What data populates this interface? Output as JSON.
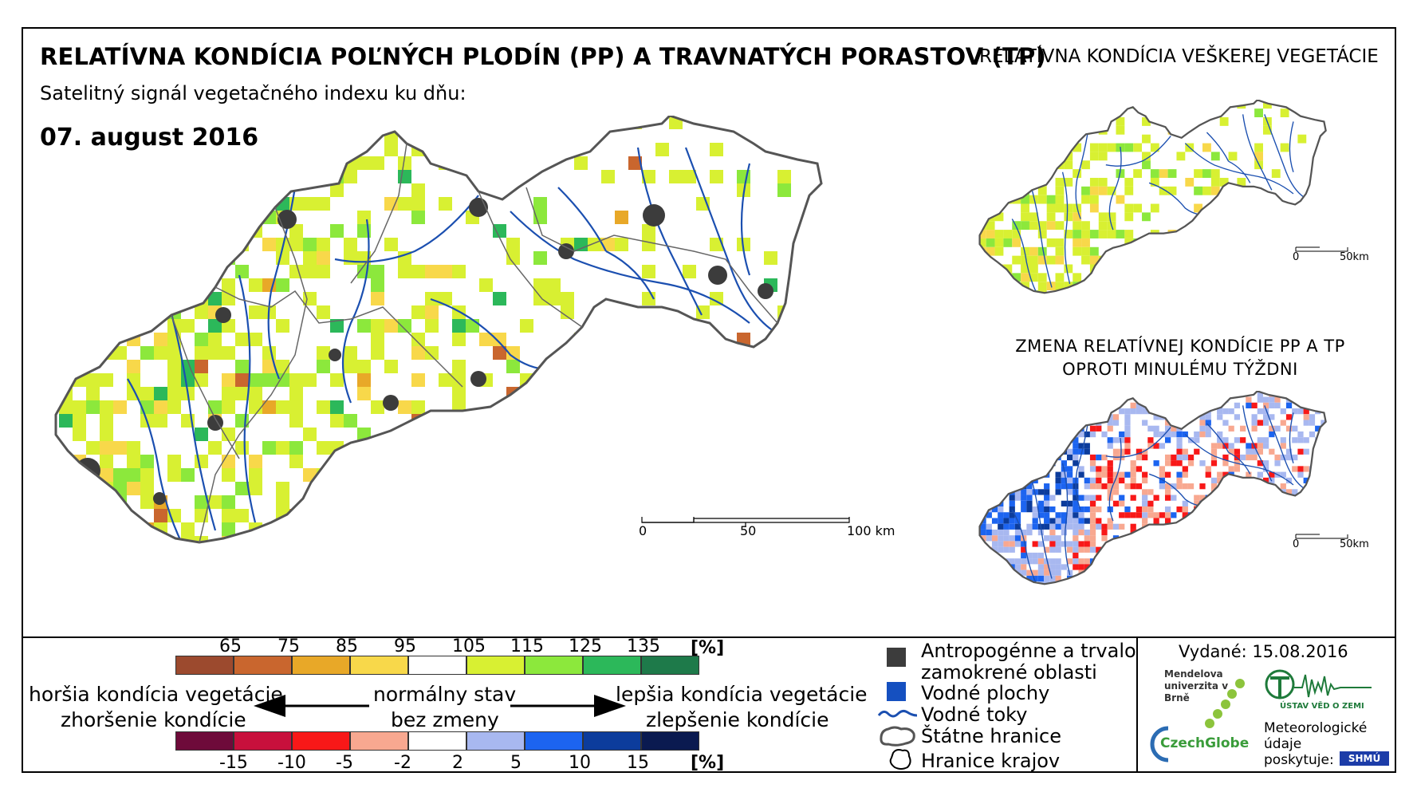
{
  "header": {
    "title": "RELATÍVNA KONDÍCIA POĽNÝCH PLODÍN (PP) A TRAVNATÝCH PORASTOV (TP)",
    "side_title": "RELATÍVNA KONDÍCIA VEŠKEREJ VEGETÁCIE",
    "subtitle": "Satelitný signál vegetačného indexu ku dňu:",
    "date": "07. august 2016"
  },
  "change_map": {
    "title_line1": "ZMENA RELATÍVNEJ KONDÍCIE PP A TP",
    "title_line2": "OPROTI MINULÉMU TÝŽDNI"
  },
  "main_scale": {
    "label0": "0",
    "label1": "50",
    "label2": "100 km"
  },
  "small_scale_1": {
    "label0": "0",
    "label1": "50km"
  },
  "small_scale_2": {
    "label0": "0",
    "label1": "50km"
  },
  "condition_scale": {
    "ticks": [
      "65",
      "75",
      "85",
      "95",
      "105",
      "115",
      "125",
      "135"
    ],
    "unit": "[%]",
    "colors": [
      "#9c4a2e",
      "#c9662e",
      "#e8a828",
      "#f8d84a",
      "#ffffff",
      "#d8f032",
      "#8ce83c",
      "#2cb85a",
      "#1e7a4a"
    ]
  },
  "change_scale": {
    "ticks": [
      "-15",
      "-10",
      "-5",
      "-2",
      "2",
      "5",
      "10",
      "15"
    ],
    "unit": "[%]",
    "colors": [
      "#6e0a3a",
      "#c8103c",
      "#f81818",
      "#f8a890",
      "#ffffff",
      "#a8b8f0",
      "#1c64f0",
      "#0c3c9c",
      "#0a1a50"
    ]
  },
  "legend_text": {
    "worse_condition": "horšia kondícia vegetácie",
    "worse_change": "zhoršenie kondície",
    "normal": "normálny stav",
    "no_change": "bez zmeny",
    "better_condition": "lepšia kondícia vegetácie",
    "better_change": "zlepšenie kondície"
  },
  "map_legend": {
    "anthropogenic_line1": "Antropogénne a trvalo",
    "anthropogenic_line2": "zamokrené oblasti",
    "water_bodies": "Vodné plochy",
    "rivers": "Vodné toky",
    "state_borders": "Štátne hranice",
    "region_borders": "Hranice krajov"
  },
  "issued": {
    "label": "Vydané:",
    "date": "15.08.2016"
  },
  "logos": {
    "mendel": "Mendelova univerzita v Brně",
    "czechglobe": "CzechGlobe",
    "uvgz": "ÚSTAV VĚD O ZEMI",
    "shmu": "SHMÚ",
    "meteo_line1": "Meteorologické",
    "meteo_line2": "údaje",
    "meteo_line3": "poskytuje:"
  },
  "colors": {
    "river": "#1b4fb0",
    "water": "#1550c0",
    "urban": "#3c3c3c",
    "border": "#555555"
  }
}
